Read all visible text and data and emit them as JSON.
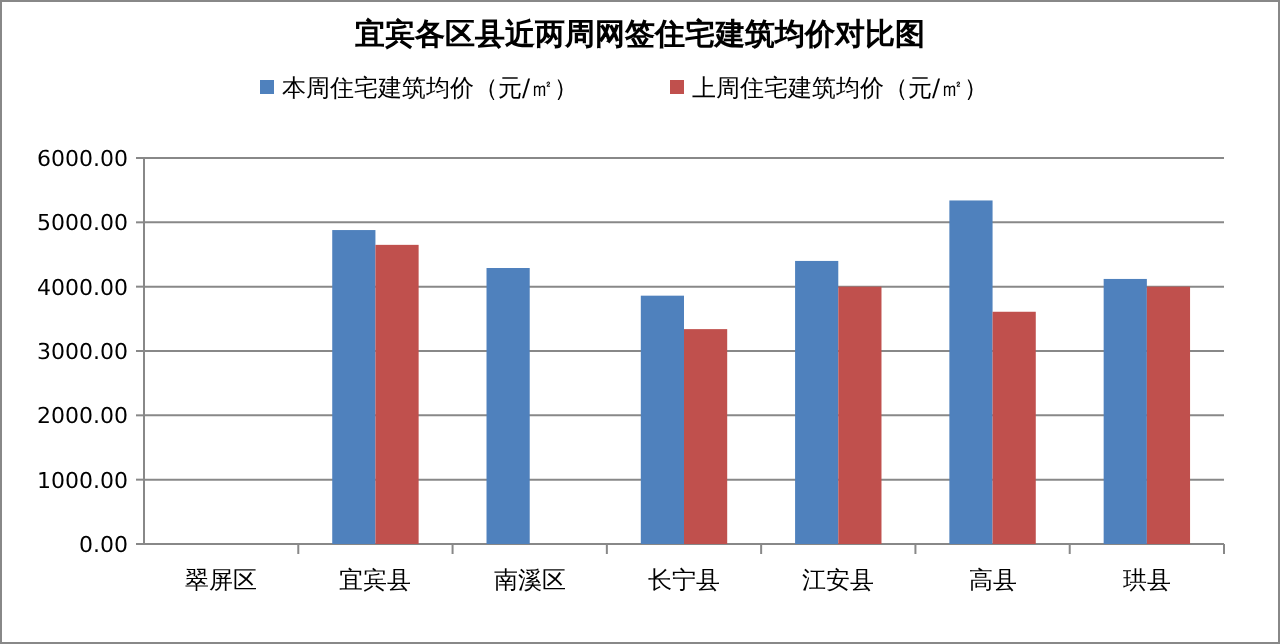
{
  "chart_data": {
    "type": "bar",
    "title": "宜宾各区县近两周网签住宅建筑均价对比图",
    "categories": [
      "翠屏区",
      "宜宾县",
      "南溪区",
      "长宁县",
      "江安县",
      "高县",
      "珙县"
    ],
    "series": [
      {
        "name": "本周住宅建筑均价（元/㎡）",
        "color": "#4f81bd",
        "values": [
          null,
          4880,
          4290,
          3860,
          4400,
          5340,
          4120
        ]
      },
      {
        "name": "上周住宅建筑均价（元/㎡）",
        "color": "#c0504d",
        "values": [
          null,
          4650,
          null,
          3340,
          4000,
          3610,
          4000
        ]
      }
    ],
    "ylim": [
      0,
      6000
    ],
    "yticks": [
      {
        "value": 0,
        "label": "0.00"
      },
      {
        "value": 1000,
        "label": "1000.00"
      },
      {
        "value": 2000,
        "label": "2000.00"
      },
      {
        "value": 3000,
        "label": "3000.00"
      },
      {
        "value": 4000,
        "label": "4000.00"
      },
      {
        "value": 5000,
        "label": "5000.00"
      },
      {
        "value": 6000,
        "label": "6000.00"
      }
    ],
    "grid": "y",
    "legend": "top"
  }
}
